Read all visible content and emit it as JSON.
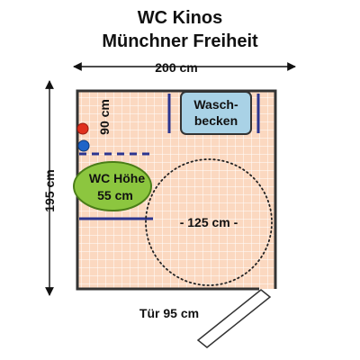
{
  "title": {
    "line1": "WC Kinos",
    "line2": "Münchner Freiheit"
  },
  "dimensions": {
    "width_label": "200 cm",
    "depth_label": "195 cm",
    "side_clearance_label": "90 cm",
    "door_label": "Tür 95 cm",
    "turning_circle_label": "- 125 cm -"
  },
  "fixtures": {
    "sink_line1": "Wasch-",
    "sink_line2": "becken",
    "toilet_line1": "WC Höhe",
    "toilet_line2": "55 cm"
  },
  "colors": {
    "floor_fill": "#fbd8c0",
    "wall": "#333333",
    "grab_bar": "#2b3590",
    "sink_fill": "#a9d2e6",
    "toilet_fill": "#8cc63f",
    "toilet_stroke": "#4a7d18",
    "red_marker": "#e0301e",
    "blue_marker": "#1e64c8",
    "circle_stroke": "#222222"
  }
}
